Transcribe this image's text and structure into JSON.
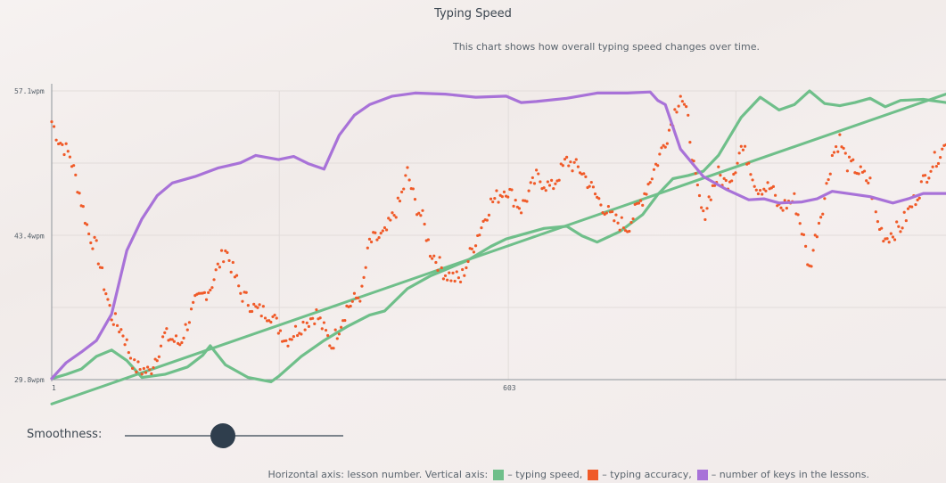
{
  "title": "Typing Speed",
  "subtitle": "This chart shows how overall typing speed changes over time.",
  "slider": {
    "label": "Smoothness:",
    "value": 0.45
  },
  "legend": {
    "prefix": "Horizontal axis: lesson number. Vertical axis:",
    "items": [
      {
        "text": "– typing speed,",
        "color": "#6fbf8a"
      },
      {
        "text": "– typing accuracy,",
        "color": "#f05a28"
      },
      {
        "text": "– number of keys in the lessons.",
        "color": "#a872d8"
      }
    ]
  },
  "chart_data": {
    "type": "line",
    "xlim": [
      1,
      1180
    ],
    "ylim": [
      29.8,
      57.1
    ],
    "y_ticks": [
      {
        "value": 29.8,
        "label": "29.8wpm"
      },
      {
        "value": 43.4,
        "label": "43.4wpm"
      },
      {
        "value": 57.1,
        "label": "57.1wpm"
      }
    ],
    "x_ticks": [
      {
        "value": 1,
        "label": "1"
      },
      {
        "value": 603,
        "label": "603"
      }
    ],
    "grid": true,
    "series": [
      {
        "name": "typing speed",
        "color": "#6fbf8a",
        "style": "line",
        "points": [
          [
            1,
            29.9
          ],
          [
            20,
            30.3
          ],
          [
            40,
            30.8
          ],
          [
            60,
            32.0
          ],
          [
            80,
            32.6
          ],
          [
            100,
            31.6
          ],
          [
            120,
            30.0
          ],
          [
            150,
            30.3
          ],
          [
            180,
            31.0
          ],
          [
            200,
            32.1
          ],
          [
            210,
            33.0
          ],
          [
            230,
            31.2
          ],
          [
            260,
            30.0
          ],
          [
            290,
            29.6
          ],
          [
            300,
            30.1
          ],
          [
            330,
            32.0
          ],
          [
            360,
            33.5
          ],
          [
            390,
            34.8
          ],
          [
            420,
            35.9
          ],
          [
            440,
            36.3
          ],
          [
            470,
            38.4
          ],
          [
            500,
            39.6
          ],
          [
            520,
            40.2
          ],
          [
            550,
            41.1
          ],
          [
            580,
            42.4
          ],
          [
            600,
            43.1
          ],
          [
            620,
            43.5
          ],
          [
            650,
            44.1
          ],
          [
            680,
            44.3
          ],
          [
            700,
            43.4
          ],
          [
            720,
            42.8
          ],
          [
            750,
            43.8
          ],
          [
            780,
            45.4
          ],
          [
            800,
            47.3
          ],
          [
            820,
            48.8
          ],
          [
            840,
            49.1
          ],
          [
            860,
            49.5
          ],
          [
            880,
            51.0
          ],
          [
            910,
            54.6
          ],
          [
            935,
            56.5
          ],
          [
            960,
            55.3
          ],
          [
            980,
            55.8
          ],
          [
            1000,
            57.1
          ],
          [
            1020,
            55.9
          ],
          [
            1040,
            55.7
          ],
          [
            1060,
            56.0
          ],
          [
            1080,
            56.4
          ],
          [
            1100,
            55.6
          ],
          [
            1120,
            56.2
          ],
          [
            1150,
            56.3
          ],
          [
            1180,
            56.0
          ]
        ]
      },
      {
        "name": "typing speed trend",
        "color": "#6fbf8a",
        "style": "trend",
        "points": [
          [
            1,
            27.5
          ],
          [
            1180,
            56.8
          ]
        ]
      },
      {
        "name": "typing accuracy",
        "color": "#f05a28",
        "style": "dots",
        "points": [
          [
            1,
            54.2
          ],
          [
            10,
            52.5
          ],
          [
            25,
            51.0
          ],
          [
            35,
            48.2
          ],
          [
            50,
            43.6
          ],
          [
            60,
            42.2
          ],
          [
            70,
            38.8
          ],
          [
            80,
            35.8
          ],
          [
            95,
            34.2
          ],
          [
            110,
            31.0
          ],
          [
            130,
            30.5
          ],
          [
            150,
            34.0
          ],
          [
            170,
            33.2
          ],
          [
            190,
            37.0
          ],
          [
            210,
            38.5
          ],
          [
            230,
            42.2
          ],
          [
            250,
            38.0
          ],
          [
            270,
            36.4
          ],
          [
            290,
            36.0
          ],
          [
            310,
            33.5
          ],
          [
            330,
            34.9
          ],
          [
            350,
            36.0
          ],
          [
            370,
            33.0
          ],
          [
            390,
            36.6
          ],
          [
            410,
            38.0
          ],
          [
            420,
            42.8
          ],
          [
            440,
            43.5
          ],
          [
            460,
            46.6
          ],
          [
            470,
            49.4
          ],
          [
            480,
            46.5
          ],
          [
            490,
            45.0
          ],
          [
            500,
            42.0
          ],
          [
            520,
            39.8
          ],
          [
            540,
            39.2
          ],
          [
            560,
            43.0
          ],
          [
            580,
            46.5
          ],
          [
            600,
            47.9
          ],
          [
            620,
            46.0
          ],
          [
            640,
            48.9
          ],
          [
            660,
            47.9
          ],
          [
            680,
            50.5
          ],
          [
            700,
            49.5
          ],
          [
            720,
            47.0
          ],
          [
            740,
            45.0
          ],
          [
            760,
            44.2
          ],
          [
            780,
            47.0
          ],
          [
            800,
            50.5
          ],
          [
            815,
            53.4
          ],
          [
            830,
            56.9
          ],
          [
            840,
            54.2
          ],
          [
            850,
            48.5
          ],
          [
            860,
            45.1
          ],
          [
            870,
            47.5
          ],
          [
            880,
            49.2
          ],
          [
            890,
            48.3
          ],
          [
            900,
            49.5
          ],
          [
            910,
            51.8
          ],
          [
            920,
            50.5
          ],
          [
            930,
            48.0
          ],
          [
            950,
            47.9
          ],
          [
            960,
            46.0
          ],
          [
            980,
            46.8
          ],
          [
            990,
            44.0
          ],
          [
            1000,
            40.2
          ],
          [
            1010,
            44.0
          ],
          [
            1020,
            47.0
          ],
          [
            1030,
            51.0
          ],
          [
            1040,
            52.5
          ],
          [
            1050,
            50.2
          ],
          [
            1060,
            49.8
          ],
          [
            1080,
            48.4
          ],
          [
            1090,
            44.6
          ],
          [
            1100,
            43.2
          ],
          [
            1120,
            44.2
          ],
          [
            1140,
            47.0
          ],
          [
            1160,
            50.0
          ],
          [
            1180,
            52.0
          ]
        ]
      },
      {
        "name": "number of keys in the lessons",
        "color": "#a872d8",
        "style": "line",
        "points": [
          [
            1,
            29.9
          ],
          [
            20,
            31.4
          ],
          [
            40,
            32.4
          ],
          [
            60,
            33.5
          ],
          [
            80,
            36.0
          ],
          [
            100,
            42.0
          ],
          [
            120,
            45.0
          ],
          [
            140,
            47.2
          ],
          [
            160,
            48.4
          ],
          [
            190,
            49.0
          ],
          [
            220,
            49.8
          ],
          [
            250,
            50.3
          ],
          [
            270,
            51.0
          ],
          [
            300,
            50.6
          ],
          [
            320,
            50.9
          ],
          [
            340,
            50.2
          ],
          [
            360,
            49.7
          ],
          [
            380,
            52.9
          ],
          [
            400,
            54.8
          ],
          [
            420,
            55.8
          ],
          [
            450,
            56.6
          ],
          [
            480,
            56.9
          ],
          [
            520,
            56.8
          ],
          [
            560,
            56.5
          ],
          [
            600,
            56.6
          ],
          [
            620,
            56.0
          ],
          [
            640,
            56.1
          ],
          [
            680,
            56.4
          ],
          [
            720,
            56.9
          ],
          [
            760,
            56.9
          ],
          [
            790,
            57.0
          ],
          [
            800,
            56.2
          ],
          [
            810,
            55.8
          ],
          [
            830,
            51.6
          ],
          [
            860,
            49.0
          ],
          [
            890,
            47.8
          ],
          [
            920,
            46.8
          ],
          [
            940,
            46.9
          ],
          [
            960,
            46.5
          ],
          [
            990,
            46.6
          ],
          [
            1010,
            46.9
          ],
          [
            1030,
            47.6
          ],
          [
            1050,
            47.4
          ],
          [
            1080,
            47.1
          ],
          [
            1110,
            46.5
          ],
          [
            1130,
            46.9
          ],
          [
            1150,
            47.4
          ],
          [
            1180,
            47.4
          ]
        ]
      }
    ]
  }
}
